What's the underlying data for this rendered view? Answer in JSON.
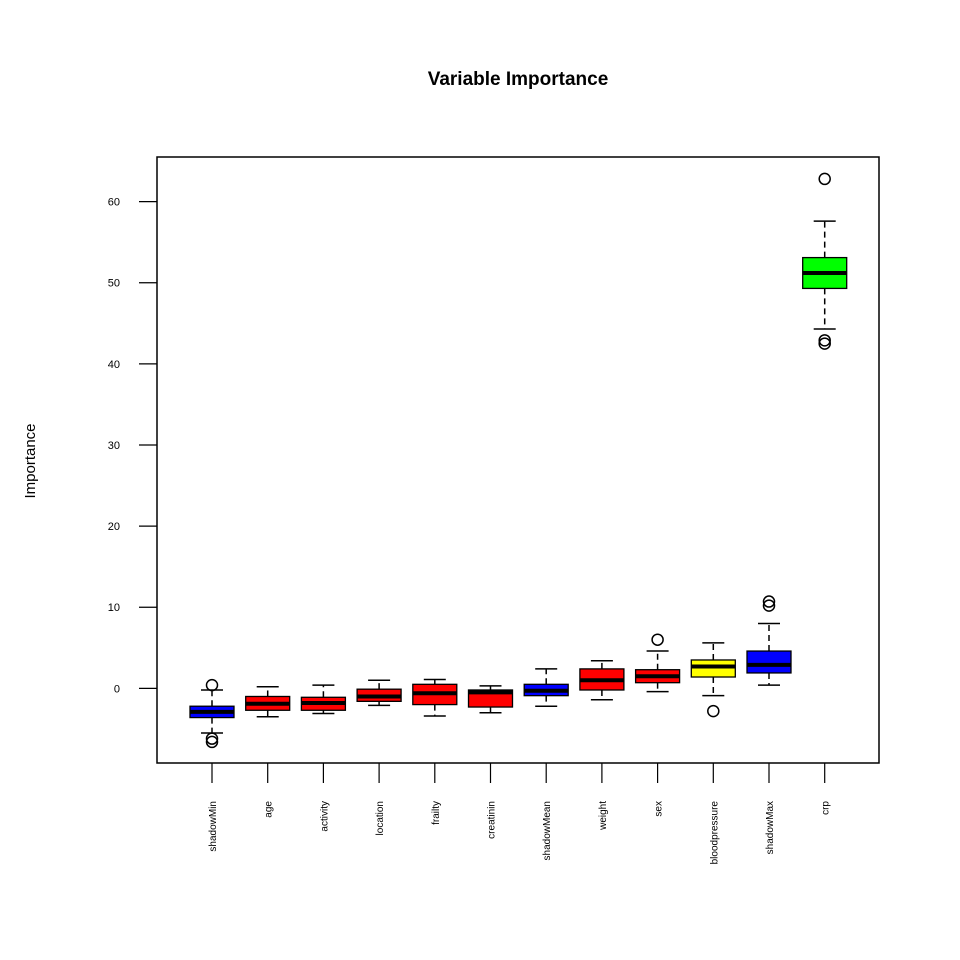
{
  "chart_data": {
    "type": "boxplot",
    "title": "Variable Importance",
    "xlabel": "",
    "ylabel": "Importance",
    "ylim": [
      -9.2,
      65.5
    ],
    "yticks": [
      0,
      10,
      20,
      30,
      40,
      50,
      60
    ],
    "grid": false,
    "colors": {
      "shadow": "#0000ff",
      "rejected": "#ff0000",
      "tentative": "#ffff00",
      "confirmed": "#00ff00"
    },
    "categories": [
      "shadowMin",
      "age",
      "activity",
      "location",
      "frailty",
      "creatinin",
      "shadowMean",
      "weight",
      "sex",
      "bloodpressure",
      "shadowMax",
      "crp"
    ],
    "boxes": [
      {
        "name": "shadowMin",
        "color": "#0000ff",
        "whisker_low": -5.5,
        "q1": -3.6,
        "median": -2.9,
        "q3": -2.2,
        "whisker_high": -0.2,
        "outliers": [
          0.4,
          -6.2,
          -6.6
        ]
      },
      {
        "name": "age",
        "color": "#ff0000",
        "whisker_low": -3.5,
        "q1": -2.7,
        "median": -1.9,
        "q3": -1.0,
        "whisker_high": 0.2,
        "outliers": []
      },
      {
        "name": "activity",
        "color": "#ff0000",
        "whisker_low": -3.1,
        "q1": -2.7,
        "median": -1.8,
        "q3": -1.1,
        "whisker_high": 0.4,
        "outliers": []
      },
      {
        "name": "location",
        "color": "#ff0000",
        "whisker_low": -2.1,
        "q1": -1.6,
        "median": -1.0,
        "q3": -0.1,
        "whisker_high": 1.0,
        "outliers": []
      },
      {
        "name": "frailty",
        "color": "#ff0000",
        "whisker_low": -3.4,
        "q1": -2.0,
        "median": -0.6,
        "q3": 0.5,
        "whisker_high": 1.1,
        "outliers": []
      },
      {
        "name": "creatinin",
        "color": "#ff0000",
        "whisker_low": -3.0,
        "q1": -2.3,
        "median": -0.5,
        "q3": -0.2,
        "whisker_high": 0.3,
        "outliers": []
      },
      {
        "name": "shadowMean",
        "color": "#0000ff",
        "whisker_low": -2.2,
        "q1": -0.9,
        "median": -0.3,
        "q3": 0.5,
        "whisker_high": 2.4,
        "outliers": []
      },
      {
        "name": "weight",
        "color": "#ff0000",
        "whisker_low": -1.4,
        "q1": -0.2,
        "median": 1.0,
        "q3": 2.4,
        "whisker_high": 3.4,
        "outliers": []
      },
      {
        "name": "sex",
        "color": "#ff0000",
        "whisker_low": -0.4,
        "q1": 0.7,
        "median": 1.5,
        "q3": 2.3,
        "whisker_high": 4.6,
        "outliers": [
          6.0
        ]
      },
      {
        "name": "bloodpressure",
        "color": "#ffff00",
        "whisker_low": -0.9,
        "q1": 1.4,
        "median": 2.7,
        "q3": 3.5,
        "whisker_high": 5.6,
        "outliers": [
          -2.8
        ]
      },
      {
        "name": "shadowMax",
        "color": "#0000ff",
        "whisker_low": 0.4,
        "q1": 1.9,
        "median": 2.9,
        "q3": 4.6,
        "whisker_high": 8.0,
        "outliers": [
          10.2,
          10.7
        ]
      },
      {
        "name": "crp",
        "color": "#00ff00",
        "whisker_low": 44.3,
        "q1": 49.3,
        "median": 51.2,
        "q3": 53.1,
        "whisker_high": 57.6,
        "outliers": [
          62.8,
          42.5,
          42.9
        ]
      }
    ]
  }
}
